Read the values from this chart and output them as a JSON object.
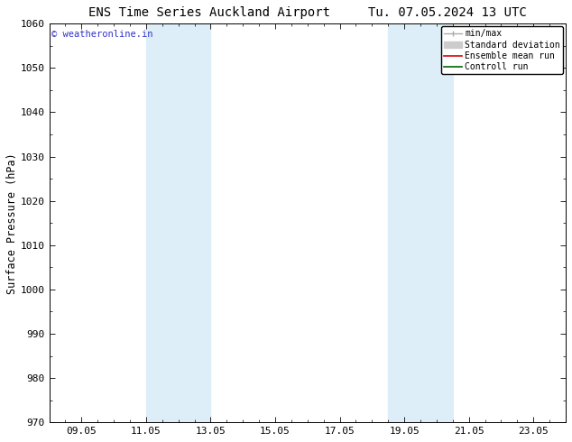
{
  "title": "ENS Time Series Auckland Airport",
  "title2": "Tu. 07.05.2024 13 UTC",
  "ylabel": "Surface Pressure (hPa)",
  "ylim": [
    970,
    1060
  ],
  "yticks": [
    970,
    980,
    990,
    1000,
    1010,
    1020,
    1030,
    1040,
    1050,
    1060
  ],
  "xlim": [
    0.0,
    16.0
  ],
  "xtick_labels": [
    "09.05",
    "11.05",
    "13.05",
    "15.05",
    "17.05",
    "19.05",
    "21.05",
    "23.05"
  ],
  "xtick_positions": [
    1.0,
    3.0,
    5.0,
    7.0,
    9.0,
    11.0,
    13.0,
    15.0
  ],
  "shaded_bands": [
    {
      "x_start": 3.0,
      "x_end": 5.0
    },
    {
      "x_start": 10.5,
      "x_end": 12.5
    }
  ],
  "band_color": "#ddeef8",
  "copyright_text": "© weatheronline.in",
  "copyright_color": "#3333cc",
  "legend_entries": [
    {
      "label": "min/max"
    },
    {
      "label": "Standard deviation"
    },
    {
      "label": "Ensemble mean run"
    },
    {
      "label": "Controll run"
    }
  ],
  "legend_handle_colors": [
    "#aaaaaa",
    "#cccccc",
    "#dd0000",
    "#006600"
  ],
  "bg_color": "#ffffff",
  "axes_bg_color": "#ffffff",
  "title_fontsize": 10,
  "tick_fontsize": 8,
  "ylabel_fontsize": 8.5
}
